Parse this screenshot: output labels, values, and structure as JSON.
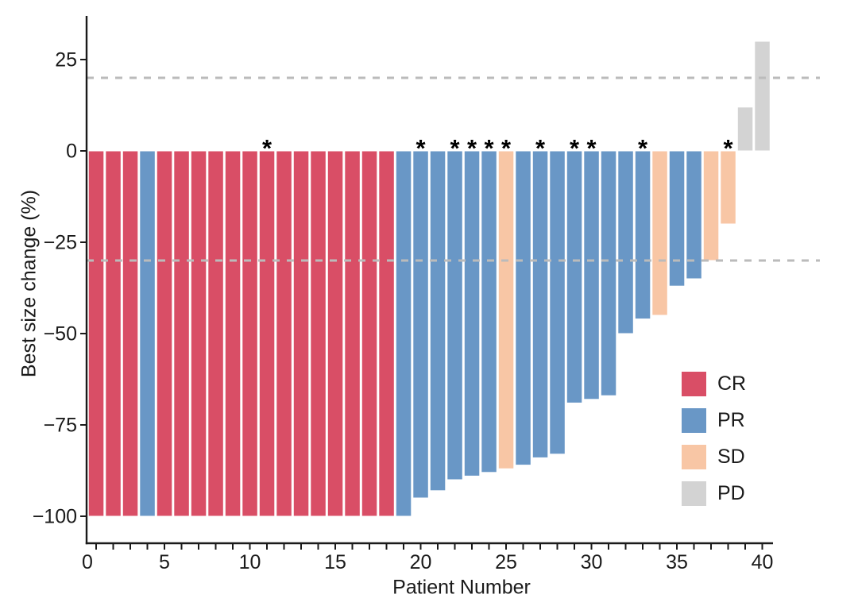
{
  "figure": {
    "x_axis_title": "Patient Number",
    "y_axis_title": "Best size change (%)"
  },
  "legend": {
    "items": [
      {
        "label": "CR"
      },
      {
        "label": "PR"
      },
      {
        "label": "SD"
      },
      {
        "label": "PD"
      }
    ]
  },
  "chart_data": {
    "type": "bar",
    "subtype": "waterfall",
    "title": "",
    "xlabel": "Patient Number",
    "ylabel": "Best size change (%)",
    "xlim": [
      0,
      43.5
    ],
    "ylim": [
      -107,
      38
    ],
    "grid": false,
    "legend_position": "right-inside",
    "x_ticks": {
      "values": [
        0,
        5,
        10,
        15,
        20,
        25,
        30,
        35,
        40
      ],
      "labels": [
        "0",
        "5",
        "10",
        "15",
        "20",
        "25",
        "30",
        "35",
        "40"
      ]
    },
    "y_ticks": {
      "values": [
        25,
        0,
        -25,
        -50,
        -75,
        -100
      ],
      "labels": [
        "25",
        "0",
        "−25",
        "−50",
        "−75",
        "−100"
      ]
    },
    "reference_lines": [
      20,
      -30
    ],
    "categories_legend": [
      "CR",
      "PR",
      "SD",
      "PD"
    ],
    "colors": {
      "CR": "#D94E66",
      "PR": "#6997C6",
      "SD": "#F8C6A5",
      "PD": "#D3D3D3",
      "reference_line": "#BBBBBB",
      "axis": "#1A1A1A",
      "asterisk": "#000000"
    },
    "bars": [
      {
        "patient": 1,
        "value": -100,
        "response": "CR",
        "asterisk": false
      },
      {
        "patient": 2,
        "value": -100,
        "response": "CR",
        "asterisk": false
      },
      {
        "patient": 3,
        "value": -100,
        "response": "CR",
        "asterisk": false
      },
      {
        "patient": 4,
        "value": -100,
        "response": "PR",
        "asterisk": false
      },
      {
        "patient": 5,
        "value": -100,
        "response": "CR",
        "asterisk": false
      },
      {
        "patient": 6,
        "value": -100,
        "response": "CR",
        "asterisk": false
      },
      {
        "patient": 7,
        "value": -100,
        "response": "CR",
        "asterisk": false
      },
      {
        "patient": 8,
        "value": -100,
        "response": "CR",
        "asterisk": false
      },
      {
        "patient": 9,
        "value": -100,
        "response": "CR",
        "asterisk": false
      },
      {
        "patient": 10,
        "value": -100,
        "response": "CR",
        "asterisk": false
      },
      {
        "patient": 11,
        "value": -100,
        "response": "CR",
        "asterisk": true
      },
      {
        "patient": 12,
        "value": -100,
        "response": "CR",
        "asterisk": false
      },
      {
        "patient": 13,
        "value": -100,
        "response": "CR",
        "asterisk": false
      },
      {
        "patient": 14,
        "value": -100,
        "response": "CR",
        "asterisk": false
      },
      {
        "patient": 15,
        "value": -100,
        "response": "CR",
        "asterisk": false
      },
      {
        "patient": 16,
        "value": -100,
        "response": "CR",
        "asterisk": false
      },
      {
        "patient": 17,
        "value": -100,
        "response": "CR",
        "asterisk": false
      },
      {
        "patient": 18,
        "value": -100,
        "response": "CR",
        "asterisk": false
      },
      {
        "patient": 19,
        "value": -100,
        "response": "PR",
        "asterisk": false
      },
      {
        "patient": 20,
        "value": -95,
        "response": "PR",
        "asterisk": true
      },
      {
        "patient": 21,
        "value": -93,
        "response": "PR",
        "asterisk": false
      },
      {
        "patient": 22,
        "value": -90,
        "response": "PR",
        "asterisk": true
      },
      {
        "patient": 23,
        "value": -89,
        "response": "PR",
        "asterisk": true
      },
      {
        "patient": 24,
        "value": -88,
        "response": "PR",
        "asterisk": true
      },
      {
        "patient": 25,
        "value": -87,
        "response": "SD",
        "asterisk": true
      },
      {
        "patient": 26,
        "value": -86,
        "response": "PR",
        "asterisk": false
      },
      {
        "patient": 27,
        "value": -84,
        "response": "PR",
        "asterisk": true
      },
      {
        "patient": 28,
        "value": -83,
        "response": "PR",
        "asterisk": false
      },
      {
        "patient": 29,
        "value": -69,
        "response": "PR",
        "asterisk": true
      },
      {
        "patient": 30,
        "value": -68,
        "response": "PR",
        "asterisk": true
      },
      {
        "patient": 31,
        "value": -67,
        "response": "PR",
        "asterisk": false
      },
      {
        "patient": 32,
        "value": -50,
        "response": "PR",
        "asterisk": false
      },
      {
        "patient": 33,
        "value": -46,
        "response": "PR",
        "asterisk": true
      },
      {
        "patient": 34,
        "value": -45,
        "response": "SD",
        "asterisk": false
      },
      {
        "patient": 35,
        "value": -37,
        "response": "PR",
        "asterisk": false
      },
      {
        "patient": 36,
        "value": -35,
        "response": "PR",
        "asterisk": false
      },
      {
        "patient": 37,
        "value": -30,
        "response": "SD",
        "asterisk": false
      },
      {
        "patient": 38,
        "value": -20,
        "response": "SD",
        "asterisk": true
      },
      {
        "patient": 39,
        "value": 12,
        "response": "PD",
        "asterisk": false
      },
      {
        "patient": 40,
        "value": 30,
        "response": "PD",
        "asterisk": false
      }
    ]
  }
}
